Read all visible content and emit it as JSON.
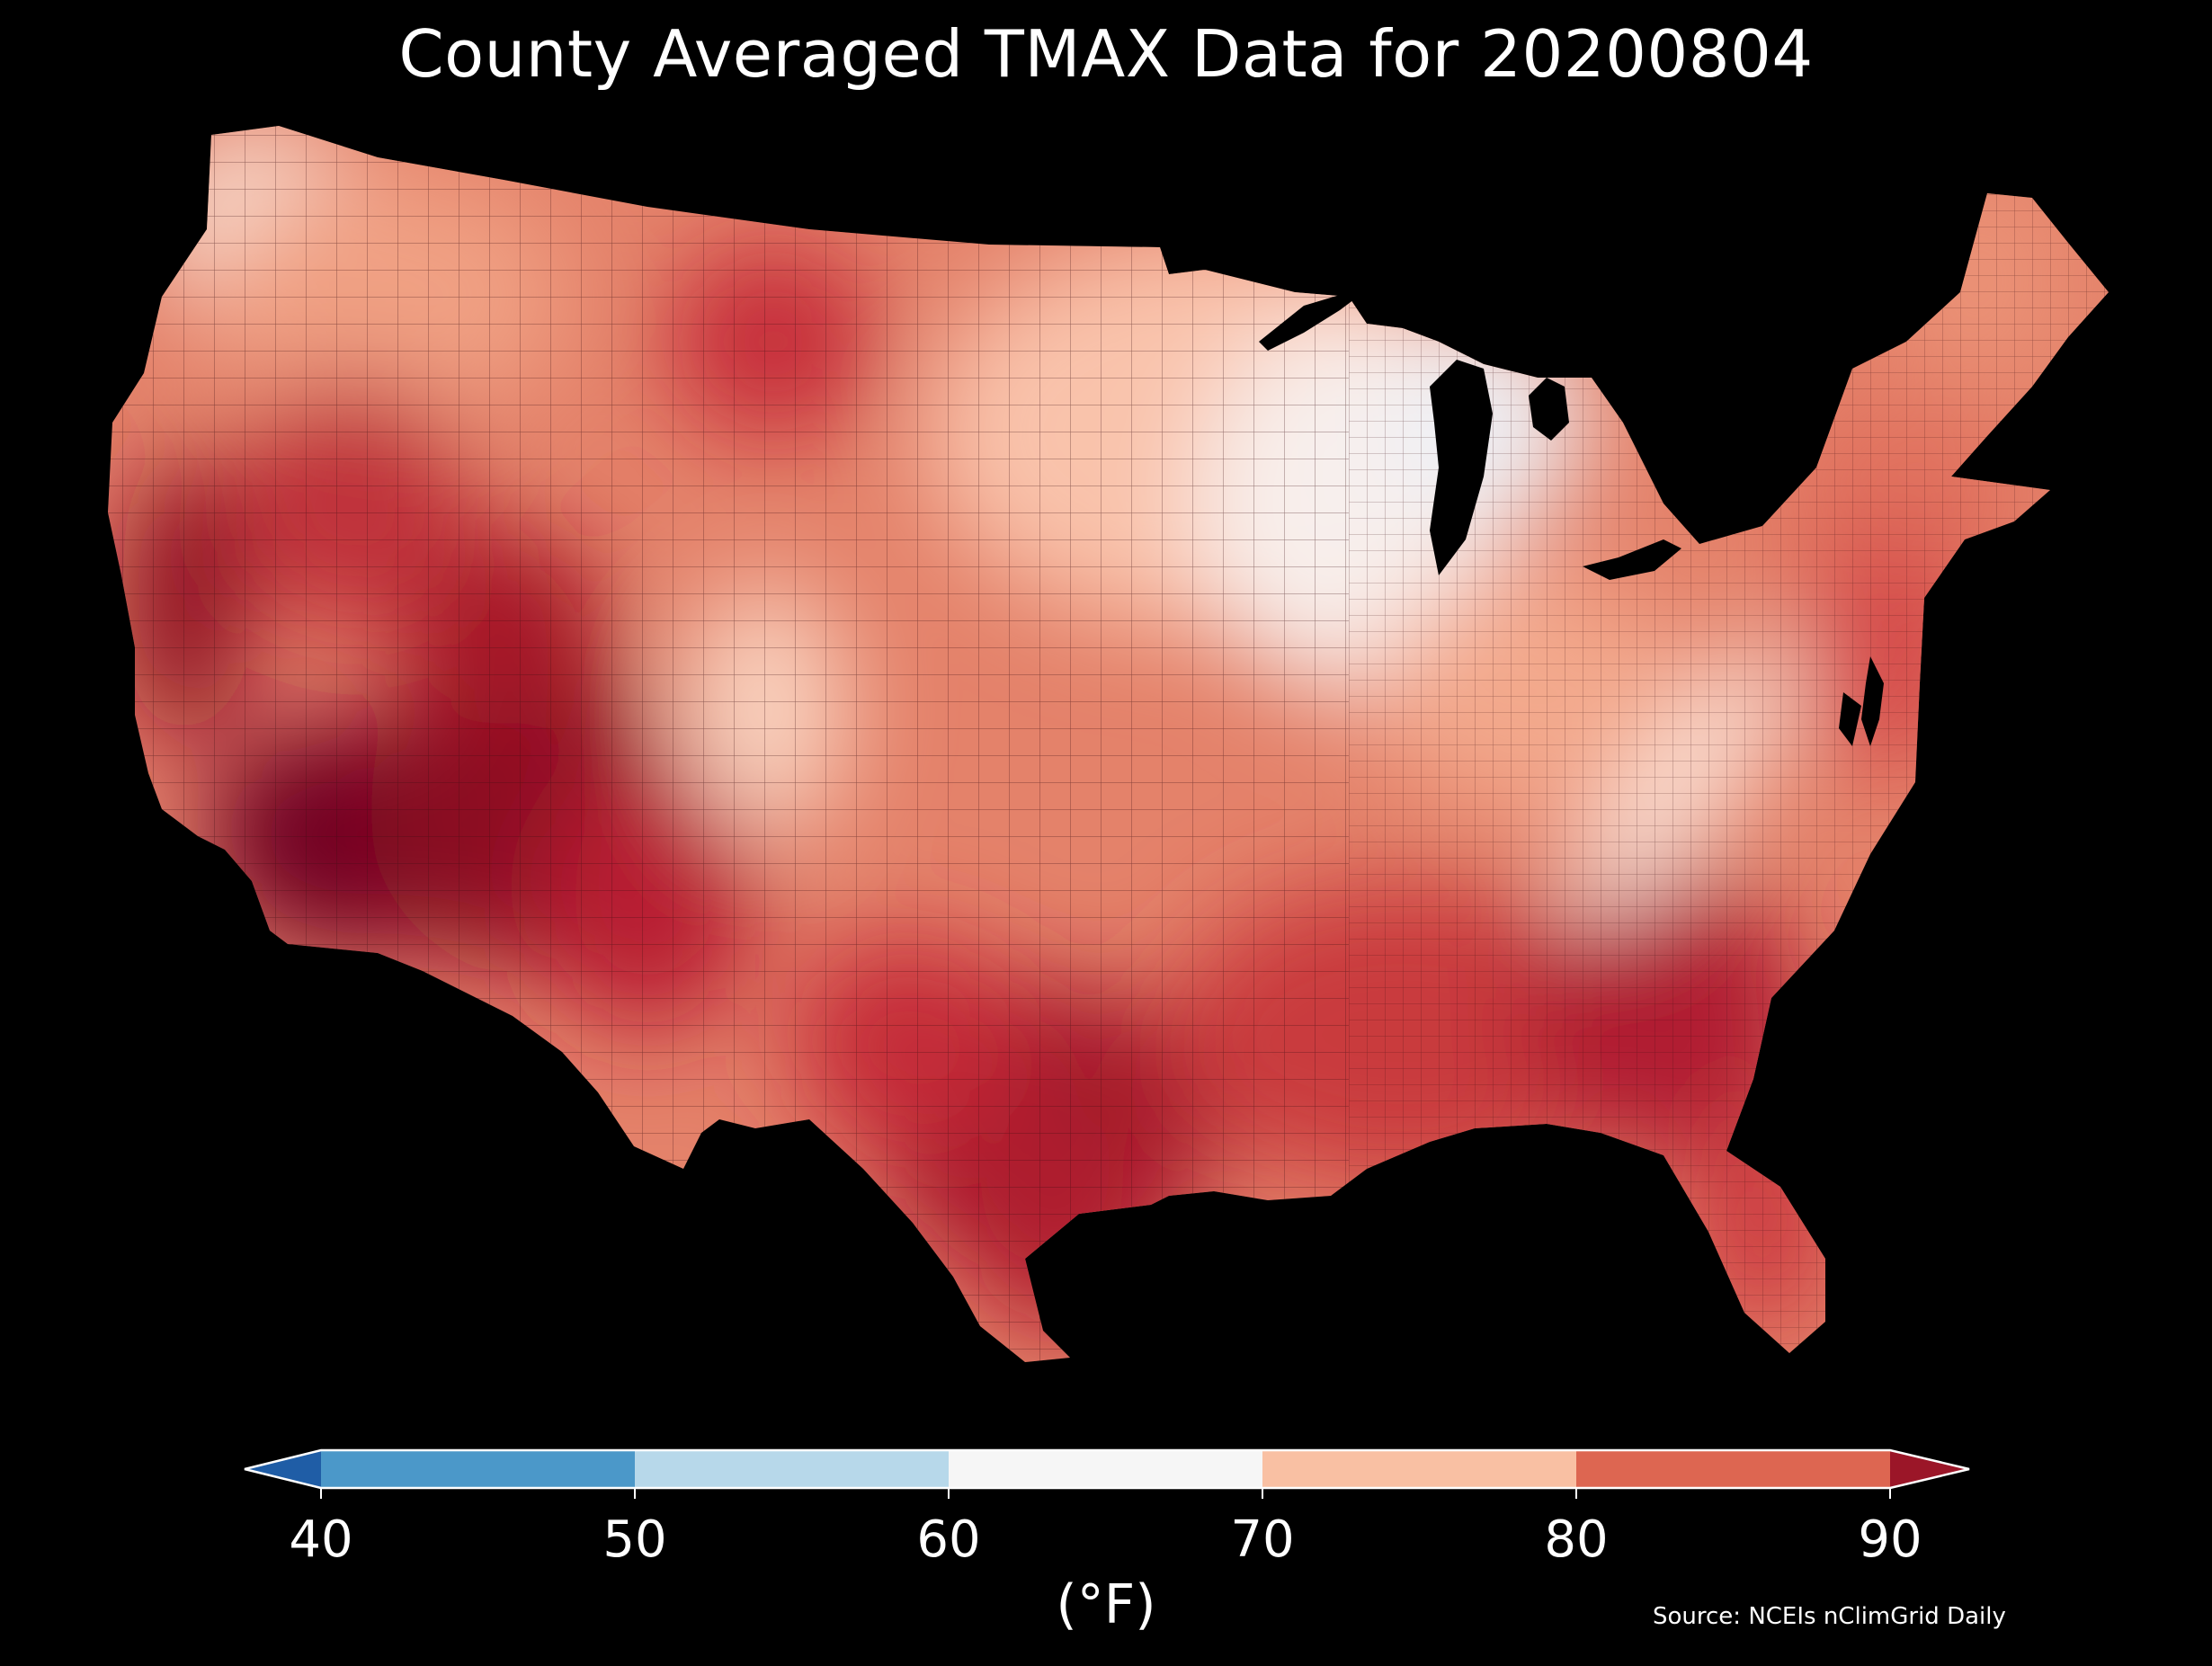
{
  "title": "County Averaged TMAX Data for 20200804",
  "source": "Source: NCEIs nClimGrid Daily",
  "colorbar": {
    "unit": "(°F)",
    "ticks": [
      "40",
      "50",
      "60",
      "70",
      "80",
      "90"
    ],
    "bins": [
      {
        "range": "<40",
        "color": "#1f5da6"
      },
      {
        "range": "40-50",
        "color": "#4b98c9"
      },
      {
        "range": "50-60",
        "color": "#b7d8ea"
      },
      {
        "range": "60-70",
        "color": "#f6f6f6"
      },
      {
        "range": "70-80",
        "color": "#f9c0a3"
      },
      {
        "range": "80-90",
        "color": "#dd6651"
      },
      {
        "range": ">90",
        "color": "#9b1628"
      }
    ],
    "extend": "both"
  },
  "map": {
    "region": "Contiguous United States",
    "variable": "TMAX",
    "date": "20200804",
    "background": "#000000"
  }
}
